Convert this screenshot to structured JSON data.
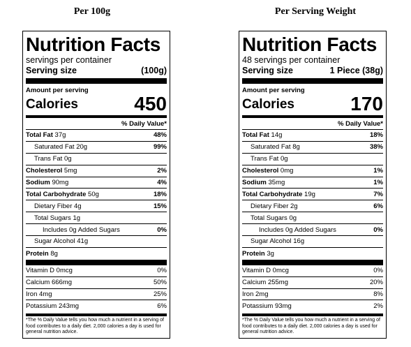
{
  "labels": [
    {
      "heading": "Per 100g",
      "title": "Nutrition Facts",
      "servings": "servings per container",
      "serving_size_label": "Serving size",
      "serving_size_value": "(100g)",
      "amount_per_serving": "Amount per serving",
      "calories_label": "Calories",
      "calories_value": "450",
      "dv_header": "% Daily Value*",
      "rows": [
        {
          "name": "Total Fat",
          "amount": "37g",
          "dv": "48%"
        },
        {
          "name": "Saturated Fat",
          "amount": "20g",
          "dv": "99%"
        },
        {
          "name": "Trans Fat",
          "amount": "0g",
          "dv": ""
        },
        {
          "name": "Cholesterol",
          "amount": "5mg",
          "dv": "2%"
        },
        {
          "name": "Sodium",
          "amount": "90mg",
          "dv": "4%"
        },
        {
          "name": "Total Carbohydrate",
          "amount": "50g",
          "dv": "18%"
        },
        {
          "name": "Dietary Fiber",
          "amount": "4g",
          "dv": "15%"
        },
        {
          "name": "Total Sugars",
          "amount": "1g",
          "dv": ""
        },
        {
          "name": "Includes 0g Added Sugars",
          "amount": "",
          "dv": "0%"
        },
        {
          "name": "Sugar Alcohol",
          "amount": "41g",
          "dv": ""
        },
        {
          "name": "Protein",
          "amount": "8g",
          "dv": ""
        }
      ],
      "vitamins": [
        {
          "name": "Vitamin D",
          "amount": "0mcg",
          "dv": "0%"
        },
        {
          "name": "Calcium",
          "amount": "666mg",
          "dv": "50%"
        },
        {
          "name": "Iron",
          "amount": "4mg",
          "dv": "25%"
        },
        {
          "name": "Potassium",
          "amount": "243mg",
          "dv": "6%"
        }
      ],
      "footnote": "*The % Daily Value tells you how much a nutrient in a serving of food contributes to a daily diet. 2,000 calories a day is used for general nutrition advice."
    },
    {
      "heading": "Per Serving Weight",
      "title": "Nutrition Facts",
      "servings": "48 servings per container",
      "serving_size_label": "Serving size",
      "serving_size_value": "1 Piece (38g)",
      "amount_per_serving": "Amount per serving",
      "calories_label": "Calories",
      "calories_value": "170",
      "dv_header": "% Daily Value*",
      "rows": [
        {
          "name": "Total Fat",
          "amount": "14g",
          "dv": "18%"
        },
        {
          "name": "Saturated Fat",
          "amount": "8g",
          "dv": "38%"
        },
        {
          "name": "Trans Fat",
          "amount": "0g",
          "dv": ""
        },
        {
          "name": "Cholesterol",
          "amount": "0mg",
          "dv": "1%"
        },
        {
          "name": "Sodium",
          "amount": "35mg",
          "dv": "1%"
        },
        {
          "name": "Total Carbohydrate",
          "amount": "19g",
          "dv": "7%"
        },
        {
          "name": "Dietary Fiber",
          "amount": "2g",
          "dv": "6%"
        },
        {
          "name": "Total Sugars",
          "amount": "0g",
          "dv": ""
        },
        {
          "name": "Includes 0g Added Sugars",
          "amount": "",
          "dv": "0%"
        },
        {
          "name": "Sugar Alcohol",
          "amount": "16g",
          "dv": ""
        },
        {
          "name": "Protein",
          "amount": "3g",
          "dv": ""
        }
      ],
      "vitamins": [
        {
          "name": "Vitamin D",
          "amount": "0mcg",
          "dv": "0%"
        },
        {
          "name": "Calcium",
          "amount": "255mg",
          "dv": "20%"
        },
        {
          "name": "Iron",
          "amount": "2mg",
          "dv": "8%"
        },
        {
          "name": "Potassium",
          "amount": "93mg",
          "dv": "2%"
        }
      ],
      "footnote": "*The % Daily Value tells you how much a nutrient in a serving of food contributes to a daily diet. 2,000 calories a day is used for general nutrition advice."
    }
  ]
}
